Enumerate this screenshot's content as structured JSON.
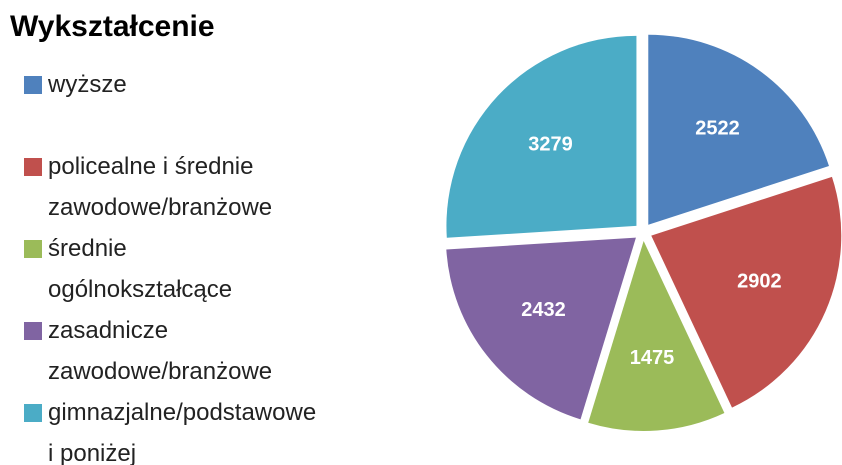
{
  "chart_data": {
    "type": "pie",
    "title": "Wykształcenie",
    "categories": [
      "wyższe",
      "policealne i średnie zawodowe/branżowe",
      "średnie ogólnokształcące",
      "zasadnicze zawodowe/branżowe",
      "gimnazjalne/podstawowe i poniżej"
    ],
    "values": [
      2522,
      2902,
      1475,
      2432,
      3279
    ],
    "colors": [
      "#4f81bd",
      "#c0504d",
      "#9bbb59",
      "#8064a2",
      "#4bacc6"
    ],
    "legend": "left"
  }
}
